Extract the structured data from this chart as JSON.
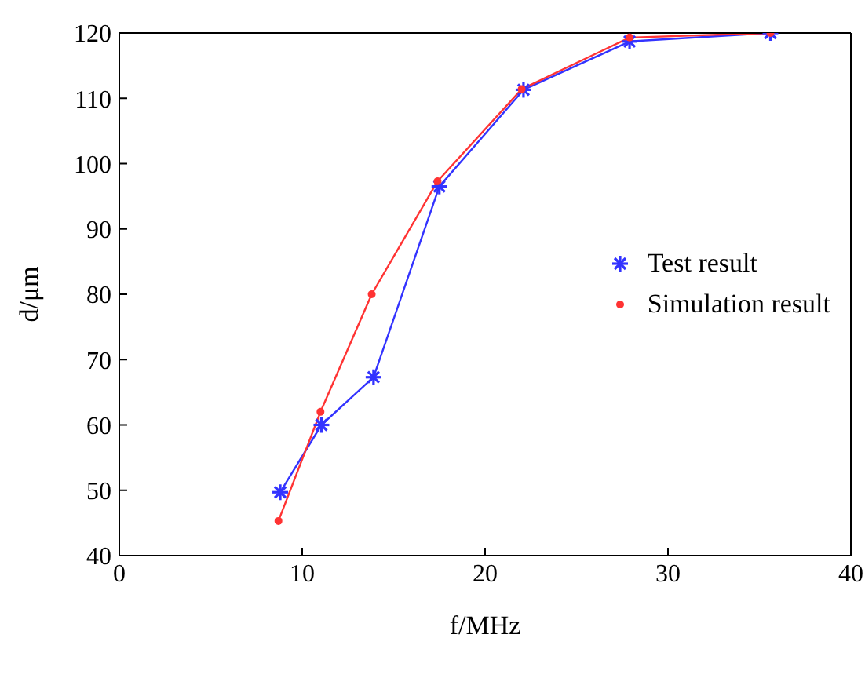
{
  "chart_data": {
    "type": "line",
    "xlabel": "f/MHz",
    "ylabel": "d/μm",
    "xlim": [
      0,
      40
    ],
    "xticks": [
      0,
      10,
      20,
      30,
      40
    ],
    "ylim": [
      40,
      120
    ],
    "yticks": [
      40,
      50,
      60,
      70,
      80,
      90,
      100,
      110,
      120
    ],
    "grid": false,
    "legend": "right",
    "series": [
      {
        "name": "Test result",
        "color": "#3333ff",
        "marker": "cross",
        "x": [
          8.8,
          11.05,
          13.9,
          17.5,
          22.1,
          27.9,
          35.6
        ],
        "values": [
          49.7,
          60,
          67.3,
          96.5,
          111.3,
          118.7,
          120
        ]
      },
      {
        "name": "Simulation result",
        "color": "#ff3333",
        "marker": "circle",
        "x": [
          8.7,
          11.0,
          13.8,
          17.4,
          22.0,
          27.9,
          35.6
        ],
        "values": [
          45.3,
          62,
          80,
          97.3,
          111.4,
          119.3,
          120
        ]
      }
    ]
  }
}
